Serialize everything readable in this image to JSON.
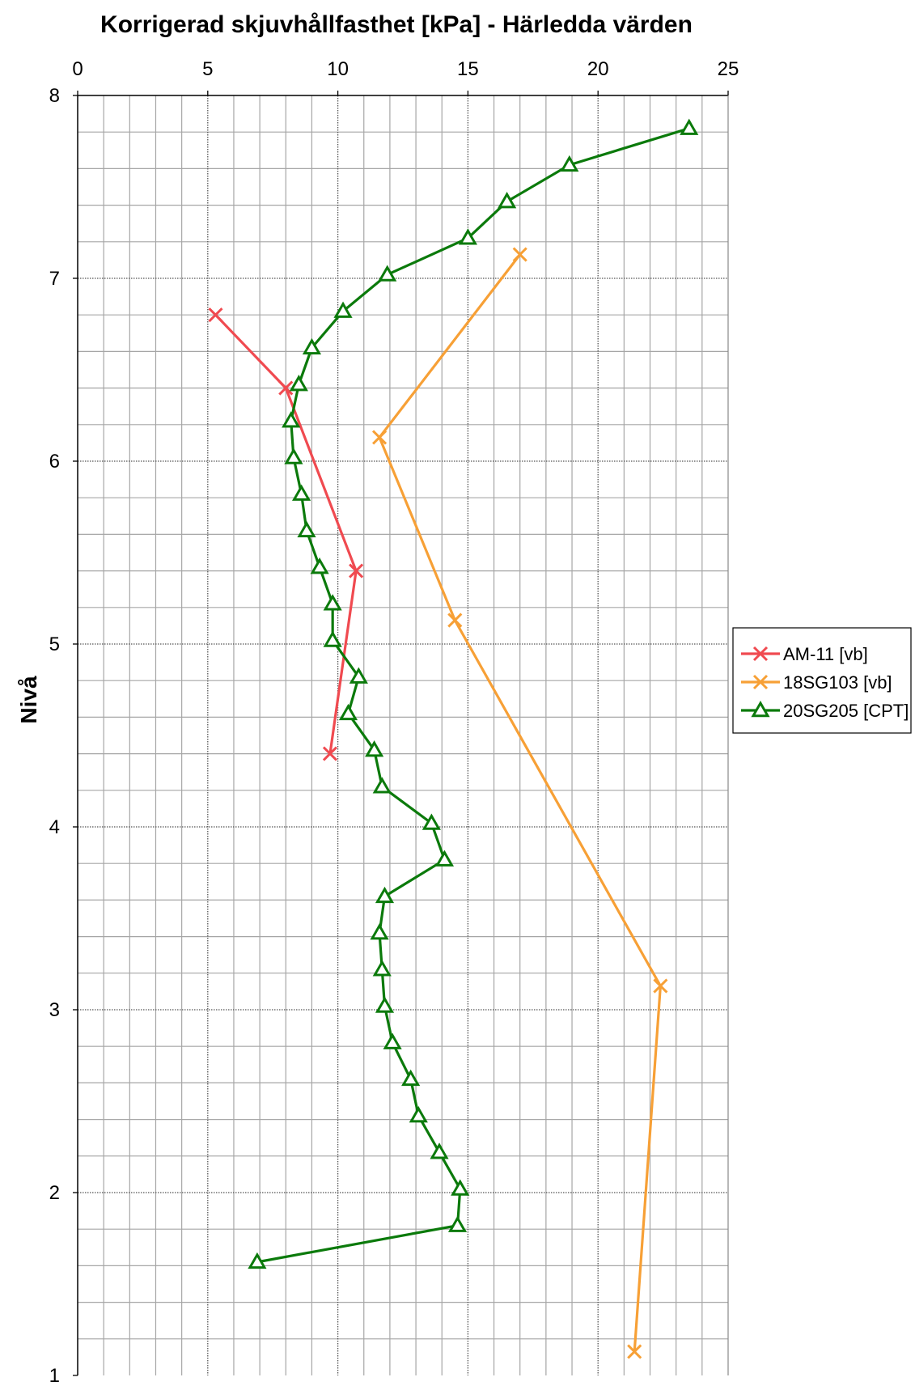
{
  "chart_data": {
    "type": "line",
    "title": "Korrigerad skjuvhållfasthet [kPa] - Härledda värden",
    "xlabel": "",
    "ylabel": "Nivå",
    "xlim": [
      0,
      25
    ],
    "ylim": [
      1,
      8
    ],
    "x_major_ticks": [
      0,
      5,
      10,
      15,
      20,
      25
    ],
    "y_major_ticks": [
      1,
      2,
      3,
      4,
      5,
      6,
      7,
      8
    ],
    "x_minor_step": 1,
    "y_minor_step": 0.2,
    "x_axis_position": "top",
    "grid": true,
    "legend_position": "right",
    "series": [
      {
        "name": "AM-11 [vb]",
        "color": "#f04a50",
        "marker": "x",
        "points": [
          [
            5.3,
            6.8
          ],
          [
            8.0,
            6.4
          ],
          [
            10.7,
            5.4
          ],
          [
            9.7,
            4.4
          ]
        ]
      },
      {
        "name": "18SG103 [vb]",
        "color": "#f7a036",
        "marker": "x",
        "points": [
          [
            17.0,
            7.13
          ],
          [
            11.6,
            6.13
          ],
          [
            14.5,
            5.13
          ],
          [
            22.4,
            3.13
          ],
          [
            21.4,
            1.13
          ]
        ]
      },
      {
        "name": "20SG205 [CPT]",
        "color": "#0b7a0b",
        "marker": "triangle",
        "points": [
          [
            23.5,
            7.82
          ],
          [
            18.9,
            7.62
          ],
          [
            16.5,
            7.42
          ],
          [
            15.0,
            7.22
          ],
          [
            11.9,
            7.02
          ],
          [
            10.2,
            6.82
          ],
          [
            9.0,
            6.62
          ],
          [
            8.5,
            6.42
          ],
          [
            8.2,
            6.22
          ],
          [
            8.3,
            6.02
          ],
          [
            8.6,
            5.82
          ],
          [
            8.8,
            5.62
          ],
          [
            9.3,
            5.42
          ],
          [
            9.8,
            5.22
          ],
          [
            9.8,
            5.02
          ],
          [
            10.8,
            4.82
          ],
          [
            10.4,
            4.62
          ],
          [
            11.4,
            4.42
          ],
          [
            11.7,
            4.22
          ],
          [
            13.6,
            4.02
          ],
          [
            14.1,
            3.82
          ],
          [
            11.8,
            3.62
          ],
          [
            11.6,
            3.42
          ],
          [
            11.7,
            3.22
          ],
          [
            11.8,
            3.02
          ],
          [
            12.1,
            2.82
          ],
          [
            12.8,
            2.62
          ],
          [
            13.1,
            2.42
          ],
          [
            13.9,
            2.22
          ],
          [
            14.7,
            2.02
          ],
          [
            14.6,
            1.82
          ],
          [
            6.9,
            1.62
          ]
        ]
      }
    ]
  }
}
